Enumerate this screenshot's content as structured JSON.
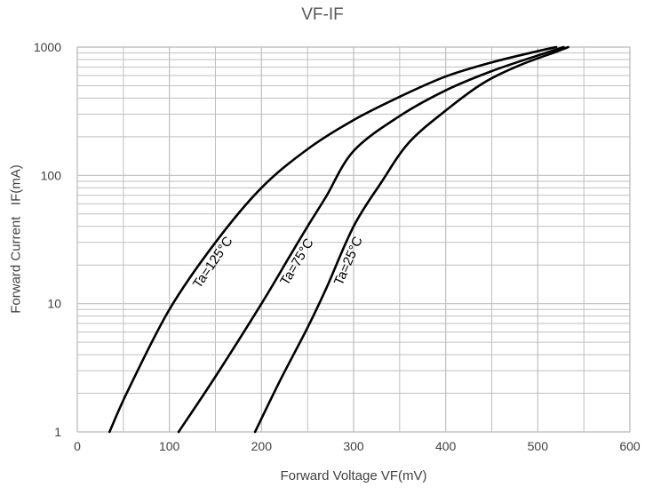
{
  "chart_data": {
    "type": "line",
    "title": "VF-IF",
    "xlabel": "Forward Voltage   VF(mV)",
    "ylabel": "Forward Current   IF(mA)",
    "xlim": [
      0,
      600
    ],
    "ylim": [
      1,
      1000
    ],
    "yscale": "log",
    "grid": true,
    "xticks": [
      "0",
      "100",
      "200",
      "300",
      "400",
      "500",
      "600"
    ],
    "yticks": [
      "1",
      "10",
      "100",
      "1000"
    ],
    "series": [
      {
        "name": "Ta=125°C",
        "x": [
          35,
          55,
          100,
          150,
          200,
          250,
          300,
          350,
          400,
          450,
          500,
          520
        ],
        "y": [
          1,
          2.1,
          9,
          30,
          80,
          160,
          270,
          410,
          590,
          760,
          930,
          1000
        ]
      },
      {
        "name": "Ta=75°C",
        "x": [
          110,
          150,
          200,
          230,
          250,
          270,
          300,
          350,
          400,
          450,
          500,
          528
        ],
        "y": [
          1,
          2.7,
          10,
          23,
          40,
          68,
          155,
          290,
          460,
          650,
          860,
          1000
        ]
      },
      {
        "name": "Ta=25°C",
        "x": [
          193,
          220,
          250,
          270,
          300,
          330,
          360,
          400,
          440,
          480,
          520,
          533
        ],
        "y": [
          1,
          2.5,
          6.5,
          13,
          40,
          88,
          180,
          320,
          520,
          720,
          920,
          1000
        ]
      }
    ],
    "colors": {
      "line": "#000000",
      "grid": "#bfbfbf",
      "axis_text": "#404040"
    }
  }
}
